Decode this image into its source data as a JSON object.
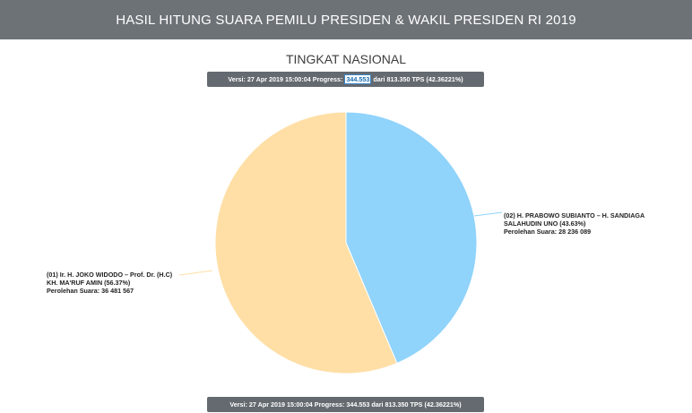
{
  "header": {
    "title": "HASIL HITUNG SUARA PEMILU PRESIDEN & WAKIL PRESIDEN RI 2019"
  },
  "subtitle": "TINGKAT NASIONAL",
  "progress": {
    "prefix": "Versi: 27 Apr 2019 15:00:04 Progress:",
    "tps_count": "344.553",
    "suffix": "dari 813.350 TPS (42.36221%)"
  },
  "chart_data": {
    "type": "pie",
    "slices": [
      {
        "name_line1": "(02) H. PRABOWO SUBIANTO – H. SANDIAGA",
        "name_line2": "SALAHUDIN UNO (43.63%)",
        "votes_label": "Perolehan Suara: 28 236 089",
        "percent": 43.63,
        "votes": 28236089,
        "color": "#90d3fb"
      },
      {
        "name_line1": "(01) Ir. H. JOKO WIDODO – Prof. Dr. (H.C)",
        "name_line2": "KH. MA'RUF AMIN (56.37%)",
        "votes_label": "Perolehan Suara: 36 481 567",
        "percent": 56.37,
        "votes": 36481567,
        "color": "#ffdfa6"
      }
    ]
  }
}
